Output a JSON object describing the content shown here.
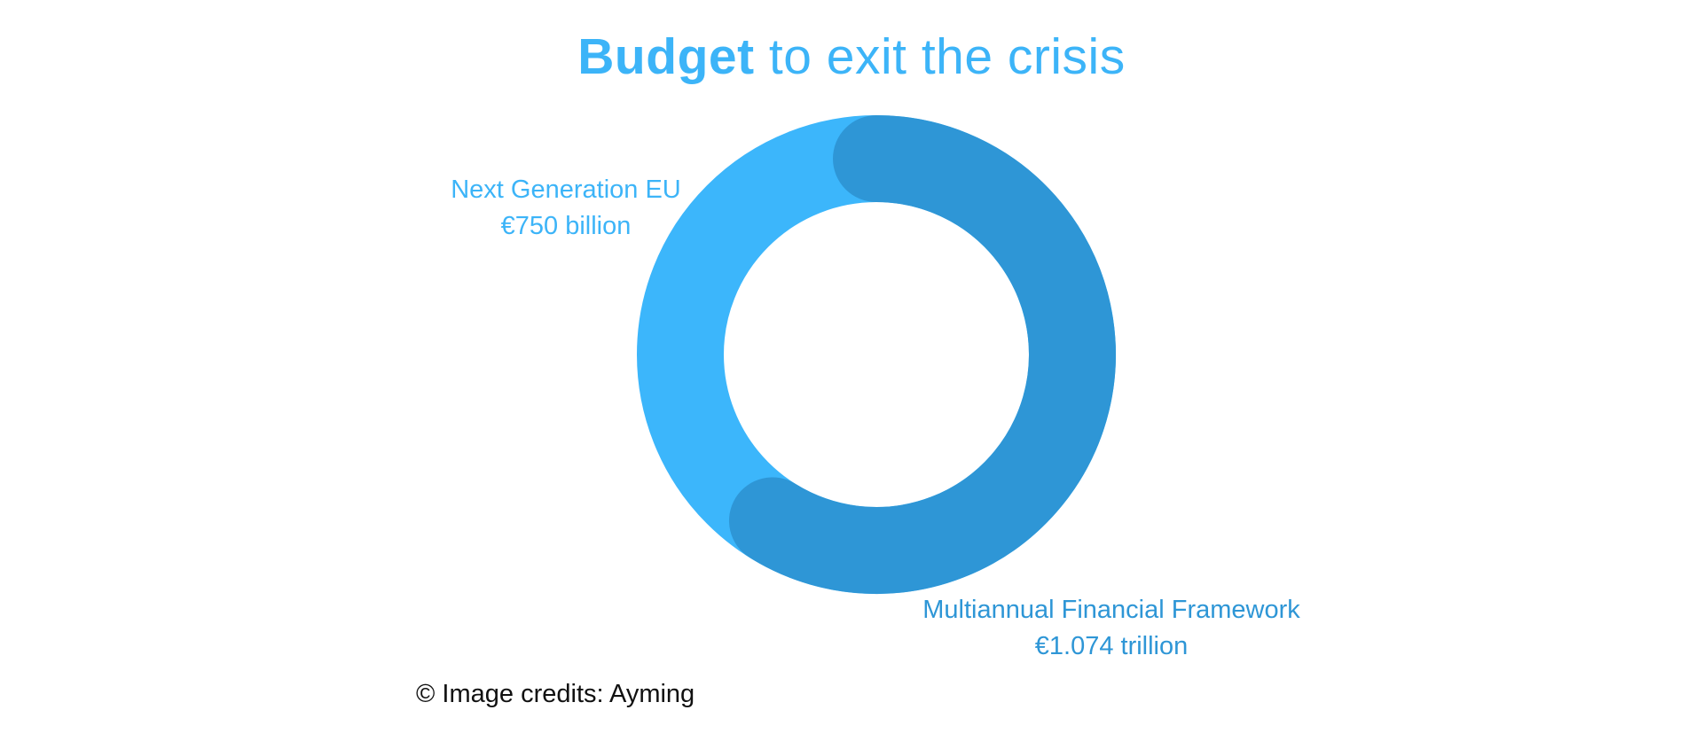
{
  "chart_data": {
    "type": "pie",
    "title_bold": "Budget",
    "title_rest": " to exit the crisis",
    "slices": [
      {
        "name": "Next Generation EU",
        "value_label": "€750 billion",
        "value": 750,
        "color": "#3cb6fb"
      },
      {
        "name": "Multiannual Financial Framework",
        "value_label": "€1.074 trillion",
        "value": 1074,
        "color": "#2e96d6"
      }
    ],
    "donut": true
  },
  "credits": "© Image credits: Ayming"
}
